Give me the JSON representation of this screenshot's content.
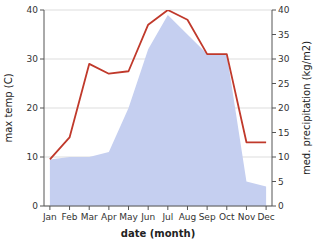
{
  "chart_data": {
    "type": "combo",
    "categories": [
      "Jan",
      "Feb",
      "Mar",
      "Apr",
      "May",
      "Jun",
      "Jul",
      "Aug",
      "Sep",
      "Oct",
      "Nov",
      "Dec"
    ],
    "series": [
      {
        "type": "area",
        "color": "#c5cff0",
        "axis": "y2",
        "values": [
          9.5,
          10.0,
          10.0,
          11.0,
          20.0,
          32.0,
          39.0,
          35.0,
          31.0,
          31.0,
          5.0,
          4.0
        ]
      },
      {
        "type": "line",
        "color": "#c0392b",
        "values": [
          9.5,
          14.0,
          29.0,
          27.0,
          27.5,
          37.0,
          40.0,
          38.0,
          31.0,
          31.0,
          13.0,
          13.0
        ]
      }
    ],
    "xlabel": "date (month)",
    "ylabel": "max temp (C)",
    "y2label": "med. precipitation (kg/m2)",
    "ylim": [
      0,
      40
    ],
    "yticks": [
      0,
      10,
      20,
      30,
      40
    ],
    "y2lim": [
      0,
      40
    ],
    "y2ticks": [
      0,
      5,
      10,
      15,
      20,
      25,
      30,
      35,
      40
    ],
    "grid": true
  }
}
